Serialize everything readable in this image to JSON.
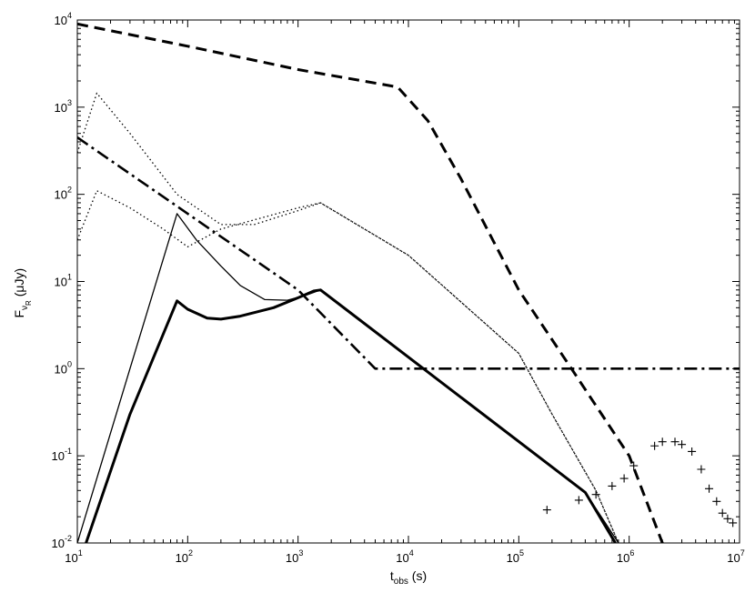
{
  "chart_data": {
    "type": "line",
    "title": "",
    "xlabel": {
      "base": "t",
      "subscript": "obs",
      "suffix": " (s)"
    },
    "ylabel": {
      "base": "F",
      "subscript": "ν",
      "subsubscript": "R",
      "suffix": "  (μJy)"
    },
    "xscale": "log",
    "yscale": "log",
    "xlim": [
      10,
      10000000
    ],
    "ylim": [
      0.01,
      10000
    ],
    "xticks": [
      {
        "base": "10",
        "exp": "1",
        "value": 10
      },
      {
        "base": "10",
        "exp": "2",
        "value": 100
      },
      {
        "base": "10",
        "exp": "3",
        "value": 1000
      },
      {
        "base": "10",
        "exp": "4",
        "value": 10000
      },
      {
        "base": "10",
        "exp": "5",
        "value": 100000
      },
      {
        "base": "10",
        "exp": "6",
        "value": 1000000
      },
      {
        "base": "10",
        "exp": "7",
        "value": 10000000
      }
    ],
    "yticks": [
      {
        "base": "10",
        "exp": "-2",
        "value": 0.01
      },
      {
        "base": "10",
        "exp": "-1",
        "value": 0.1
      },
      {
        "base": "10",
        "exp": "0",
        "value": 1
      },
      {
        "base": "10",
        "exp": "1",
        "value": 10
      },
      {
        "base": "10",
        "exp": "2",
        "value": 100
      },
      {
        "base": "10",
        "exp": "3",
        "value": 1000
      },
      {
        "base": "10",
        "exp": "4",
        "value": 10000
      }
    ],
    "grid": false,
    "legend": "none",
    "series": [
      {
        "style": "dashed",
        "stroke": "#000000",
        "points": [
          [
            10,
            9000
          ],
          [
            100,
            5000
          ],
          [
            1000,
            2700
          ],
          [
            8000,
            1700
          ],
          [
            15000,
            700
          ],
          [
            30000,
            150
          ],
          [
            100000,
            8
          ],
          [
            300000,
            1
          ],
          [
            1000000,
            0.1
          ],
          [
            2000000,
            0.01
          ]
        ]
      },
      {
        "style": "dotted",
        "stroke": "#000000",
        "points": [
          [
            10,
            300
          ],
          [
            15,
            1450
          ],
          [
            30,
            500
          ],
          [
            80,
            100
          ],
          [
            200,
            45
          ],
          [
            400,
            45
          ],
          [
            1000,
            65
          ],
          [
            1600,
            80
          ],
          [
            10000,
            20
          ],
          [
            100000,
            1.5
          ],
          [
            200000,
            0.3
          ],
          [
            500000,
            0.04
          ],
          [
            800000,
            0.01
          ]
        ]
      },
      {
        "style": "dotted",
        "stroke": "#000000",
        "points": [
          [
            10,
            30
          ],
          [
            15,
            110
          ],
          [
            30,
            70
          ],
          [
            60,
            40
          ],
          [
            100,
            25
          ],
          [
            200,
            40
          ],
          [
            1000,
            70
          ],
          [
            1600,
            80
          ],
          [
            10000,
            20
          ],
          [
            100000,
            1.5
          ],
          [
            200000,
            0.3
          ],
          [
            500000,
            0.04
          ],
          [
            800000,
            0.01
          ]
        ]
      },
      {
        "style": "dashdot",
        "stroke": "#000000",
        "points": [
          [
            10,
            450
          ],
          [
            100,
            60
          ],
          [
            1000,
            8
          ],
          [
            5000,
            1
          ],
          [
            10000000,
            1
          ]
        ]
      },
      {
        "style": "thin",
        "stroke": "#000000",
        "points": [
          [
            10,
            0.01
          ],
          [
            30,
            1
          ],
          [
            80,
            60
          ],
          [
            120,
            30
          ],
          [
            200,
            15
          ],
          [
            300,
            9
          ],
          [
            500,
            6.2
          ],
          [
            800,
            6.1
          ],
          [
            1200,
            7
          ],
          [
            1600,
            8
          ],
          [
            400000,
            0.038
          ],
          [
            800000,
            0.01
          ]
        ]
      },
      {
        "style": "thick",
        "stroke": "#000000",
        "points": [
          [
            12,
            0.01
          ],
          [
            30,
            0.3
          ],
          [
            80,
            6
          ],
          [
            100,
            4.8
          ],
          [
            150,
            3.8
          ],
          [
            200,
            3.7
          ],
          [
            300,
            4
          ],
          [
            600,
            5
          ],
          [
            1000,
            6.5
          ],
          [
            1400,
            7.8
          ],
          [
            1600,
            8
          ],
          [
            400000,
            0.038
          ],
          [
            750000,
            0.01
          ]
        ]
      },
      {
        "style": "markers",
        "marker": "+",
        "stroke": "#000000",
        "points": [
          [
            180000,
            0.024
          ],
          [
            350000,
            0.031
          ],
          [
            500000,
            0.036
          ],
          [
            700000,
            0.045
          ],
          [
            900000,
            0.055
          ],
          [
            1100000,
            0.077
          ],
          [
            1700000,
            0.13
          ],
          [
            2000000,
            0.145
          ],
          [
            2600000,
            0.145
          ],
          [
            3000000,
            0.135
          ],
          [
            3700000,
            0.112
          ],
          [
            4500000,
            0.07
          ],
          [
            5300000,
            0.042
          ],
          [
            6200000,
            0.03
          ],
          [
            7000000,
            0.022
          ],
          [
            7800000,
            0.019
          ],
          [
            8700000,
            0.017
          ]
        ]
      }
    ]
  }
}
